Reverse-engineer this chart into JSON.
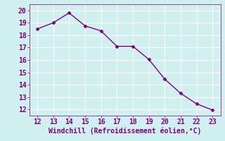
{
  "x": [
    12,
    13,
    14,
    15,
    16,
    17,
    18,
    19,
    20,
    21,
    22,
    23
  ],
  "y": [
    18.5,
    19.0,
    19.8,
    18.75,
    18.35,
    17.1,
    17.1,
    16.05,
    14.45,
    13.3,
    12.45,
    11.95
  ],
  "line_color": "#800080",
  "marker_color": "#800080",
  "bg_color": "#d0f0f0",
  "grid_color": "#ffffff",
  "xlabel": "Windchill (Refroidissement éolien,°C)",
  "xlabel_color": "#800080",
  "tick_color": "#800080",
  "xlim": [
    11.5,
    23.5
  ],
  "ylim": [
    11.5,
    20.5
  ],
  "xticks": [
    12,
    13,
    14,
    15,
    16,
    17,
    18,
    19,
    20,
    21,
    22,
    23
  ],
  "yticks": [
    12,
    13,
    14,
    15,
    16,
    17,
    18,
    19,
    20
  ],
  "xlabel_fontsize": 7,
  "tick_fontsize": 7
}
